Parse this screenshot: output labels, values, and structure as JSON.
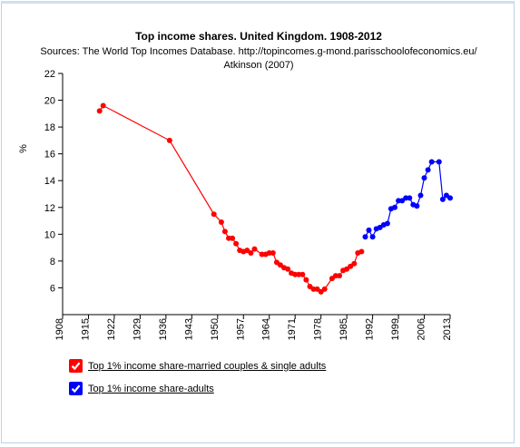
{
  "chart_data": {
    "type": "line",
    "title": "Top income shares. United Kingdom. 1908-2012",
    "subtitle_lines": [
      "Sources: The World Top Incomes Database. http://topincomes.g-mond.parisschoolofeconomics.eu/",
      "Atkinson (2007)"
    ],
    "ylabel": "%",
    "xlabel": "",
    "xlim": [
      1908,
      2013
    ],
    "ylim": [
      4,
      22
    ],
    "x_ticks": [
      1908,
      1915,
      1922,
      1929,
      1936,
      1943,
      1950,
      1957,
      1964,
      1971,
      1978,
      1985,
      1992,
      1999,
      2006,
      2013
    ],
    "y_ticks": [
      6,
      8,
      10,
      12,
      14,
      16,
      18,
      20,
      22
    ],
    "grid": false,
    "legend_position": "bottom-left",
    "series": [
      {
        "name": "Top 1% income share-married couples & single adults",
        "color": "#ff0000",
        "points": [
          [
            1918,
            19.2
          ],
          [
            1919,
            19.6
          ],
          [
            1937,
            17.0
          ],
          [
            1949,
            11.5
          ],
          [
            1951,
            10.9
          ],
          [
            1952,
            10.2
          ],
          [
            1953,
            9.7
          ],
          [
            1954,
            9.7
          ],
          [
            1955,
            9.3
          ],
          [
            1956,
            8.8
          ],
          [
            1957,
            8.7
          ],
          [
            1958,
            8.8
          ],
          [
            1959,
            8.6
          ],
          [
            1960,
            8.9
          ],
          [
            1962,
            8.5
          ],
          [
            1963,
            8.5
          ],
          [
            1964,
            8.6
          ],
          [
            1965,
            8.6
          ],
          [
            1966,
            7.9
          ],
          [
            1967,
            7.7
          ],
          [
            1968,
            7.5
          ],
          [
            1969,
            7.4
          ],
          [
            1970,
            7.1
          ],
          [
            1971,
            7.0
          ],
          [
            1972,
            7.0
          ],
          [
            1973,
            7.0
          ],
          [
            1974,
            6.6
          ],
          [
            1975,
            6.1
          ],
          [
            1976,
            5.9
          ],
          [
            1977,
            5.9
          ],
          [
            1978,
            5.7
          ],
          [
            1979,
            5.9
          ],
          [
            1981,
            6.7
          ],
          [
            1982,
            6.9
          ],
          [
            1983,
            6.9
          ],
          [
            1984,
            7.3
          ],
          [
            1985,
            7.4
          ],
          [
            1986,
            7.6
          ],
          [
            1987,
            7.8
          ],
          [
            1988,
            8.6
          ],
          [
            1989,
            8.7
          ]
        ]
      },
      {
        "name": "Top 1% income share-adults",
        "color": "#0000ff",
        "points": [
          [
            1990,
            9.8
          ],
          [
            1991,
            10.3
          ],
          [
            1992,
            9.8
          ],
          [
            1993,
            10.4
          ],
          [
            1994,
            10.5
          ],
          [
            1995,
            10.7
          ],
          [
            1996,
            10.8
          ],
          [
            1997,
            11.9
          ],
          [
            1998,
            12.0
          ],
          [
            1999,
            12.5
          ],
          [
            2000,
            12.5
          ],
          [
            2001,
            12.7
          ],
          [
            2002,
            12.7
          ],
          [
            2003,
            12.2
          ],
          [
            2004,
            12.1
          ],
          [
            2005,
            12.9
          ],
          [
            2006,
            14.2
          ],
          [
            2007,
            14.8
          ],
          [
            2008,
            15.4
          ],
          [
            2010,
            15.4
          ],
          [
            2011,
            12.6
          ],
          [
            2012,
            12.9
          ],
          [
            2013,
            12.7
          ]
        ]
      }
    ]
  }
}
